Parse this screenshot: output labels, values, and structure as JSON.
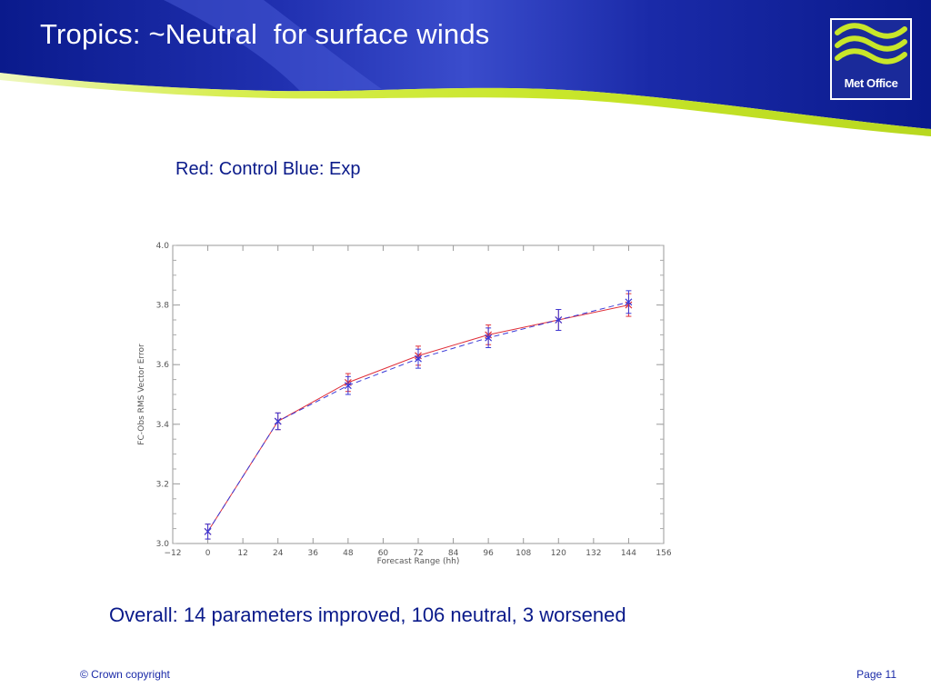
{
  "slide": {
    "title": "Tropics: ~Neutral  for surface winds",
    "legend_note": "Red: Control Blue: Exp",
    "summary": "Overall: 14 parameters improved, 106 neutral, 3 worsened",
    "copyright": "© Crown copyright",
    "page": "Page 11",
    "logo_text": "Met Office"
  },
  "colors": {
    "header_blue": "#0a1a8c",
    "header_light_blue": "#3b4fd0",
    "accent_green": "#c8e62a",
    "control_red": "#e0303a",
    "exp_blue": "#3a3ad8",
    "text_blue": "#0a1a8a"
  },
  "chart_data": {
    "type": "line",
    "xlabel": "Forecast Range (hh)",
    "ylabel": "FC-Obs RMS Vector Error",
    "xlim": [
      -12,
      156
    ],
    "ylim": [
      3.0,
      4.0
    ],
    "xticks": [
      -12,
      0,
      12,
      24,
      36,
      48,
      60,
      72,
      84,
      96,
      108,
      120,
      132,
      144,
      156
    ],
    "yticks": [
      3.0,
      3.2,
      3.4,
      3.6,
      3.8,
      4.0
    ],
    "ytick_labels": [
      "3.0",
      "3.2",
      "3.4",
      "3.6",
      "3.8",
      "4.0"
    ],
    "grid": false,
    "series": [
      {
        "color": "#e0303a",
        "line_style": "solid",
        "x": [
          0,
          24,
          48,
          72,
          96,
          120,
          144
        ],
        "y": [
          3.04,
          3.41,
          3.54,
          3.63,
          3.7,
          3.75,
          3.8
        ],
        "err": [
          0.025,
          0.028,
          0.03,
          0.032,
          0.033,
          0.035,
          0.038
        ]
      },
      {
        "color": "#3a3ad8",
        "line_style": "dashed",
        "x": [
          0,
          24,
          48,
          72,
          96,
          120,
          144
        ],
        "y": [
          3.04,
          3.41,
          3.53,
          3.62,
          3.69,
          3.75,
          3.81
        ],
        "err": [
          0.025,
          0.028,
          0.03,
          0.032,
          0.033,
          0.035,
          0.038
        ]
      }
    ]
  }
}
